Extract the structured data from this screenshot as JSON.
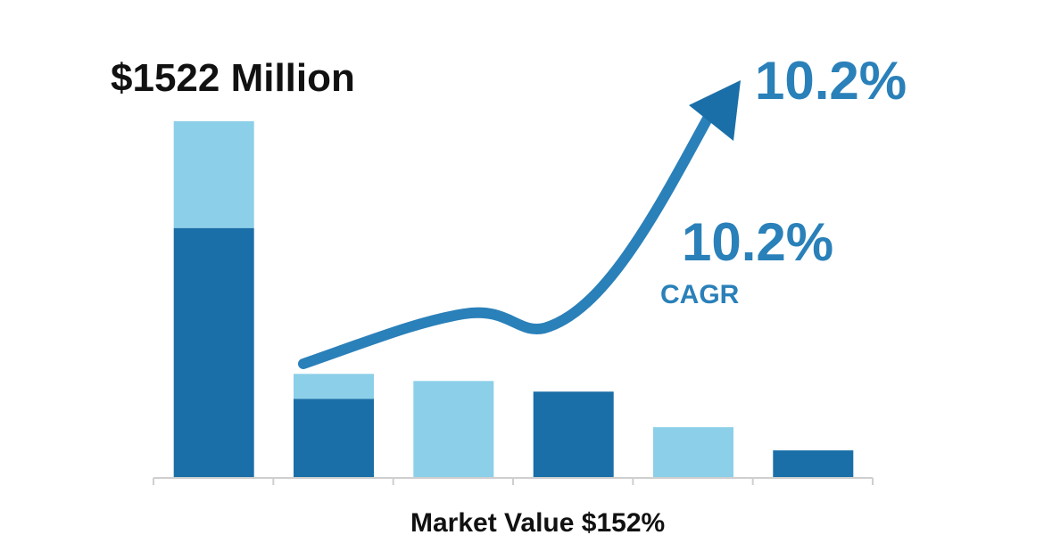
{
  "chart_data": {
    "type": "bar",
    "title": "$1522 Million",
    "xlabel": "Market Value $152%",
    "ylabel": "",
    "ylim": [
      0,
      100
    ],
    "categories": [
      "",
      "",
      "",
      "",
      "",
      ""
    ],
    "series": [
      {
        "values": [
          70,
          22,
          0,
          24,
          0,
          7.5
        ]
      },
      {
        "values": [
          30,
          7,
          27,
          0,
          14,
          0
        ]
      }
    ],
    "annotations": {
      "growth_top": "10.2%",
      "growth_mid": "10.2%",
      "growth_label": "CAGR"
    },
    "trend_arrow": true,
    "grid": false,
    "legend": "none"
  },
  "colors": {
    "dark_bar": "#1b6fa8",
    "light_bar": "#8ccfe8",
    "accent": "#2a80b9",
    "axis": "#cfcfcf",
    "text_dark": "#111111"
  }
}
